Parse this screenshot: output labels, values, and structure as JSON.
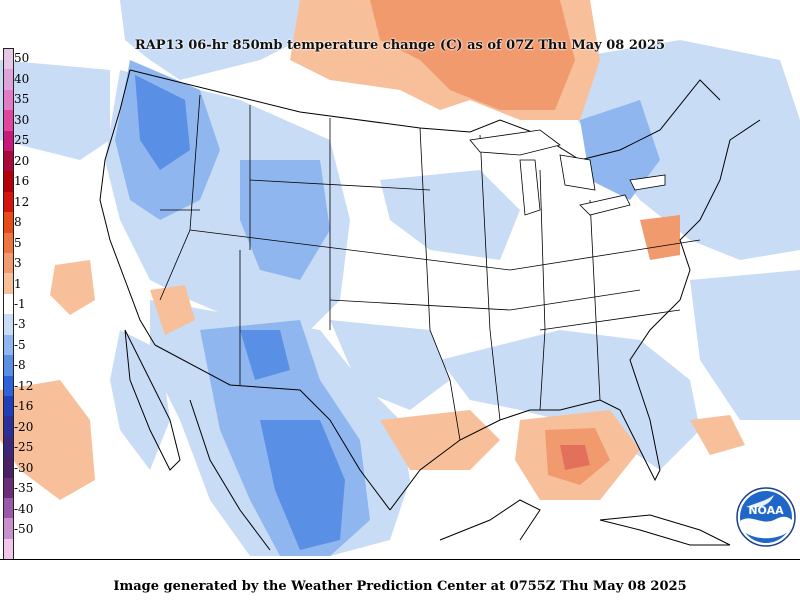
{
  "title": "RAP13 06-hr 850mb temperature change (C) as of 07Z Thu May 08 2025",
  "footer": "Image generated by the Weather Prediction Center at 0755Z Thu May 08 2025",
  "logo": {
    "text": "NOAA",
    "icon": "noaa-logo-icon"
  },
  "colors": {
    "cool_light": "#c8dcf6",
    "cool_mid": "#8fb6ef",
    "cool_strong": "#5a8fe6",
    "cool_deep": "#2e62d9",
    "warm_light": "#f7c09a",
    "warm_mid": "#f19a6e",
    "warm_strong": "#e3705a",
    "border": "#000000"
  },
  "colorbar": [
    {
      "label": "50",
      "color": "#e6c7e6"
    },
    {
      "label": "40",
      "color": "#dfa3d9"
    },
    {
      "label": "35",
      "color": "#e37ac6"
    },
    {
      "label": "30",
      "color": "#e0449f"
    },
    {
      "label": "25",
      "color": "#c8197a"
    },
    {
      "label": "20",
      "color": "#a80a3c"
    },
    {
      "label": "16",
      "color": "#b3000b"
    },
    {
      "label": "12",
      "color": "#d5140e"
    },
    {
      "label": "8",
      "color": "#e84b1a"
    },
    {
      "label": "5",
      "color": "#ef7540"
    },
    {
      "label": "3",
      "color": "#f19a6e"
    },
    {
      "label": "1",
      "color": "#f7c09a"
    },
    {
      "label": "-1",
      "color": "#ffffff"
    },
    {
      "label": "-3",
      "color": "#c8dcf6"
    },
    {
      "label": "-5",
      "color": "#8fb6ef"
    },
    {
      "label": "-8",
      "color": "#5a8fe6"
    },
    {
      "label": "-12",
      "color": "#2e62d9"
    },
    {
      "label": "-16",
      "color": "#1f3fb8"
    },
    {
      "label": "-20",
      "color": "#2a2f9a"
    },
    {
      "label": "-25",
      "color": "#3b2878"
    },
    {
      "label": "-30",
      "color": "#4a2163"
    },
    {
      "label": "-35",
      "color": "#6a2d78"
    },
    {
      "label": "-40",
      "color": "#9a5aa8"
    },
    {
      "label": "-50",
      "color": "#c890cc"
    },
    {
      "label": "",
      "color": "#f2c6ec"
    }
  ]
}
